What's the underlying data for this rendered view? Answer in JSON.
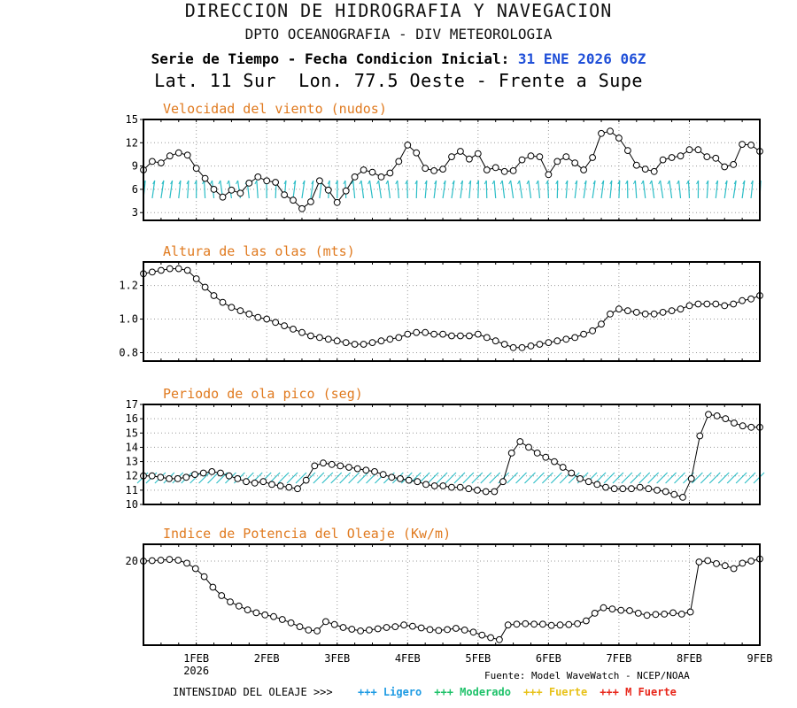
{
  "header": {
    "line1": "DIRECCION DE HIDROGRAFIA Y NAVEGACION",
    "line2": "DPTO OCEANOGRAFIA - DIV METEOROLOGIA",
    "line3_label": "Serie de Tiempo - Fecha Condicion Inicial:",
    "line3_date": "31 ENE 2026 06Z",
    "line4": "Lat. 11 Sur  Lon. 77.5 Oeste - Frente a Supe"
  },
  "x_axis": {
    "tick_labels": [
      "1FEB",
      "2FEB",
      "3FEB",
      "4FEB",
      "5FEB",
      "6FEB",
      "7FEB",
      "8FEB",
      "9FEB"
    ],
    "year_label": "2026",
    "range_days": [
      0.25,
      9.0
    ]
  },
  "colors": {
    "title": "#e07a1f",
    "arrows": "#2bbdc6",
    "accent_blue": "#1f4fd8"
  },
  "chart_data": [
    {
      "type": "line",
      "title": "Velocidad del viento (nudos)",
      "ylim": [
        2,
        15
      ],
      "yticks": [
        "3",
        "6",
        "9",
        "12",
        "15"
      ],
      "ytick_values": [
        3,
        6,
        9,
        12,
        15
      ],
      "arrows": "wind",
      "values": [
        8.5,
        9.6,
        9.4,
        10.3,
        10.7,
        10.4,
        8.7,
        7.4,
        6.0,
        5.0,
        5.9,
        5.5,
        6.8,
        7.6,
        7.1,
        6.9,
        5.3,
        4.6,
        3.5,
        4.4,
        7.1,
        5.9,
        4.3,
        5.8,
        7.6,
        8.5,
        8.2,
        7.6,
        8.1,
        9.6,
        11.7,
        10.7,
        8.7,
        8.4,
        8.6,
        10.2,
        10.9,
        9.9,
        10.6,
        8.5,
        8.8,
        8.3,
        8.4,
        9.8,
        10.3,
        10.2,
        7.9,
        9.6,
        10.2,
        9.4,
        8.5,
        10.1,
        13.2,
        13.5,
        12.6,
        11.0,
        9.1,
        8.6,
        8.3,
        9.8,
        10.1,
        10.3,
        11.1,
        11.1,
        10.2,
        10.0,
        8.9,
        9.2,
        11.8,
        11.7,
        10.9
      ]
    },
    {
      "type": "line",
      "title": "Altura de las olas (mts)",
      "ylim": [
        0.75,
        1.34
      ],
      "yticks": [
        "0.8",
        "1.0",
        "1.2"
      ],
      "ytick_values": [
        0.8,
        1.0,
        1.2
      ],
      "values": [
        1.27,
        1.28,
        1.29,
        1.3,
        1.3,
        1.29,
        1.24,
        1.19,
        1.14,
        1.1,
        1.07,
        1.05,
        1.03,
        1.01,
        1.0,
        0.98,
        0.96,
        0.94,
        0.92,
        0.9,
        0.89,
        0.88,
        0.87,
        0.86,
        0.85,
        0.85,
        0.86,
        0.87,
        0.88,
        0.89,
        0.91,
        0.92,
        0.92,
        0.91,
        0.91,
        0.9,
        0.9,
        0.9,
        0.91,
        0.89,
        0.87,
        0.85,
        0.83,
        0.83,
        0.84,
        0.85,
        0.86,
        0.87,
        0.88,
        0.89,
        0.91,
        0.93,
        0.97,
        1.03,
        1.06,
        1.05,
        1.04,
        1.03,
        1.03,
        1.04,
        1.05,
        1.06,
        1.08,
        1.09,
        1.09,
        1.09,
        1.08,
        1.09,
        1.11,
        1.12,
        1.14
      ]
    },
    {
      "type": "line",
      "title": "Periodo de ola pico (seg)",
      "ylim": [
        10,
        17
      ],
      "yticks": [
        "10",
        "11",
        "12",
        "13",
        "14",
        "15",
        "16",
        "17"
      ],
      "ytick_values": [
        10,
        11,
        12,
        13,
        14,
        15,
        16,
        17
      ],
      "arrows": "wave",
      "values": [
        12.0,
        12.0,
        11.9,
        11.8,
        11.8,
        11.9,
        12.1,
        12.2,
        12.3,
        12.2,
        12.0,
        11.8,
        11.6,
        11.5,
        11.6,
        11.4,
        11.3,
        11.2,
        11.1,
        11.7,
        12.7,
        12.9,
        12.8,
        12.7,
        12.6,
        12.5,
        12.4,
        12.3,
        12.1,
        11.9,
        11.8,
        11.7,
        11.6,
        11.4,
        11.3,
        11.3,
        11.2,
        11.2,
        11.1,
        11.0,
        10.9,
        10.9,
        11.6,
        13.6,
        14.4,
        14.0,
        13.6,
        13.3,
        13.0,
        12.6,
        12.2,
        11.8,
        11.6,
        11.4,
        11.2,
        11.1,
        11.1,
        11.1,
        11.2,
        11.1,
        11.0,
        10.9,
        10.7,
        10.5,
        11.8,
        14.8,
        16.3,
        16.2,
        16.0,
        15.7,
        15.5,
        15.4,
        15.4
      ]
    },
    {
      "type": "line",
      "title": "Indice de Potencia del Oleaje (Kw/m)",
      "ylim": [
        0,
        24
      ],
      "yticks": [
        "20"
      ],
      "ytick_values": [
        20
      ],
      "values": [
        20.0,
        20.1,
        20.2,
        20.4,
        20.2,
        19.5,
        18.2,
        16.3,
        13.8,
        11.8,
        10.3,
        9.3,
        8.4,
        7.7,
        7.2,
        6.8,
        6.1,
        5.3,
        4.4,
        3.6,
        3.4,
        5.6,
        4.9,
        4.2,
        3.8,
        3.4,
        3.6,
        3.9,
        4.2,
        4.4,
        4.8,
        4.5,
        4.1,
        3.7,
        3.5,
        3.7,
        4.0,
        3.6,
        3.1,
        2.4,
        1.8,
        1.3,
        4.8,
        5.0,
        5.1,
        5.0,
        5.0,
        4.7,
        4.8,
        4.9,
        5.1,
        5.8,
        7.6,
        8.9,
        8.6,
        8.3,
        8.2,
        7.6,
        7.1,
        7.3,
        7.4,
        7.7,
        7.4,
        7.9,
        19.8,
        20.1,
        19.4,
        18.9,
        18.2,
        19.5,
        20.0,
        20.5
      ]
    }
  ],
  "footer": {
    "source": "Fuente: Model WaveWatch - NCEP/NOAA",
    "intensity_label": "INTENSIDAD DEL OLEAJE >>>",
    "legend": [
      {
        "label": "+++ Ligero",
        "color": "#1e9be3"
      },
      {
        "label": "+++ Moderado",
        "color": "#1fc26a"
      },
      {
        "label": "+++ Fuerte",
        "color": "#e8c21a"
      },
      {
        "label": "+++ M Fuerte",
        "color": "#e8281c"
      }
    ]
  }
}
